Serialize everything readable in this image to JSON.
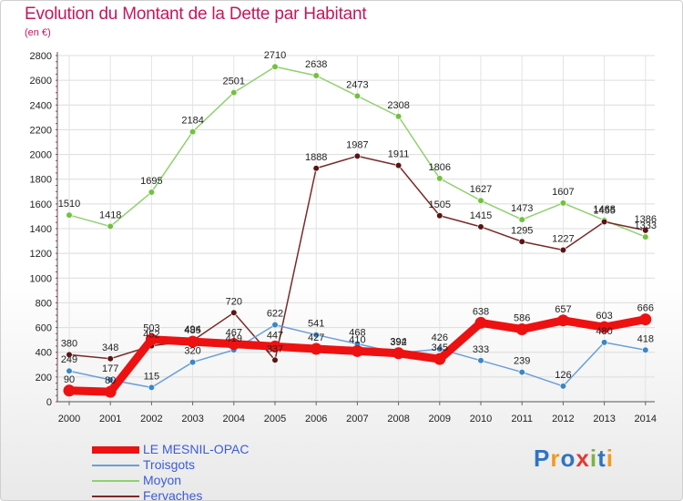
{
  "header": {
    "title": "Evolution du Montant de la Dette par Habitant",
    "subtitle": "(en €)"
  },
  "brand": {
    "text": "Proxiti",
    "letters": [
      "P",
      "r",
      "o",
      "x",
      "i",
      "t",
      "i"
    ],
    "colors": [
      "#2f74c0",
      "#f39a1e",
      "#2f74c0",
      "#e53935",
      "#7cb342",
      "#2f74c0",
      "#f39a1e"
    ]
  },
  "chart_data": {
    "type": "line",
    "title": "Evolution du Montant de la Dette par Habitant",
    "subtitle": "(en €)",
    "xlabel": "",
    "ylabel": "",
    "x": [
      "2000",
      "2001",
      "2002",
      "2003",
      "2004",
      "2005",
      "2006",
      "2007",
      "2008",
      "2009",
      "2010",
      "2011",
      "2012",
      "2013",
      "2014"
    ],
    "ylim": [
      0,
      2800
    ],
    "yticks": [
      0,
      200,
      400,
      600,
      800,
      1000,
      1200,
      1400,
      1600,
      1800,
      2000,
      2200,
      2400,
      2600,
      2800
    ],
    "grid": true,
    "legend_position": "bottom-left",
    "series": [
      {
        "name": "LE MESNIL-OPAC",
        "color": "#ee1111",
        "marker": "#ee1111",
        "values": [
          90,
          80,
          503,
          485,
          467,
          447,
          427,
          410,
          392,
          345,
          638,
          586,
          657,
          603,
          666
        ]
      },
      {
        "name": "Troisgots",
        "color": "#6a9fd8",
        "marker": "#3a86c8",
        "values": [
          249,
          177,
          115,
          320,
          419,
          622,
          541,
          468,
          394,
          426,
          333,
          239,
          126,
          480,
          418
        ]
      },
      {
        "name": "Moyon",
        "color": "#8fd16f",
        "marker": "#72c23e",
        "values": [
          1510,
          1418,
          1695,
          2184,
          2501,
          2710,
          2638,
          2473,
          2308,
          1806,
          1627,
          1473,
          1607,
          1468,
          1333
        ]
      },
      {
        "name": "Fervaches",
        "color": "#7a2a2a",
        "marker": "#5a1414",
        "values": [
          380,
          348,
          452,
          494,
          720,
          337,
          1888,
          1987,
          1911,
          1505,
          1415,
          1295,
          1227,
          1455,
          1386
        ]
      }
    ]
  }
}
